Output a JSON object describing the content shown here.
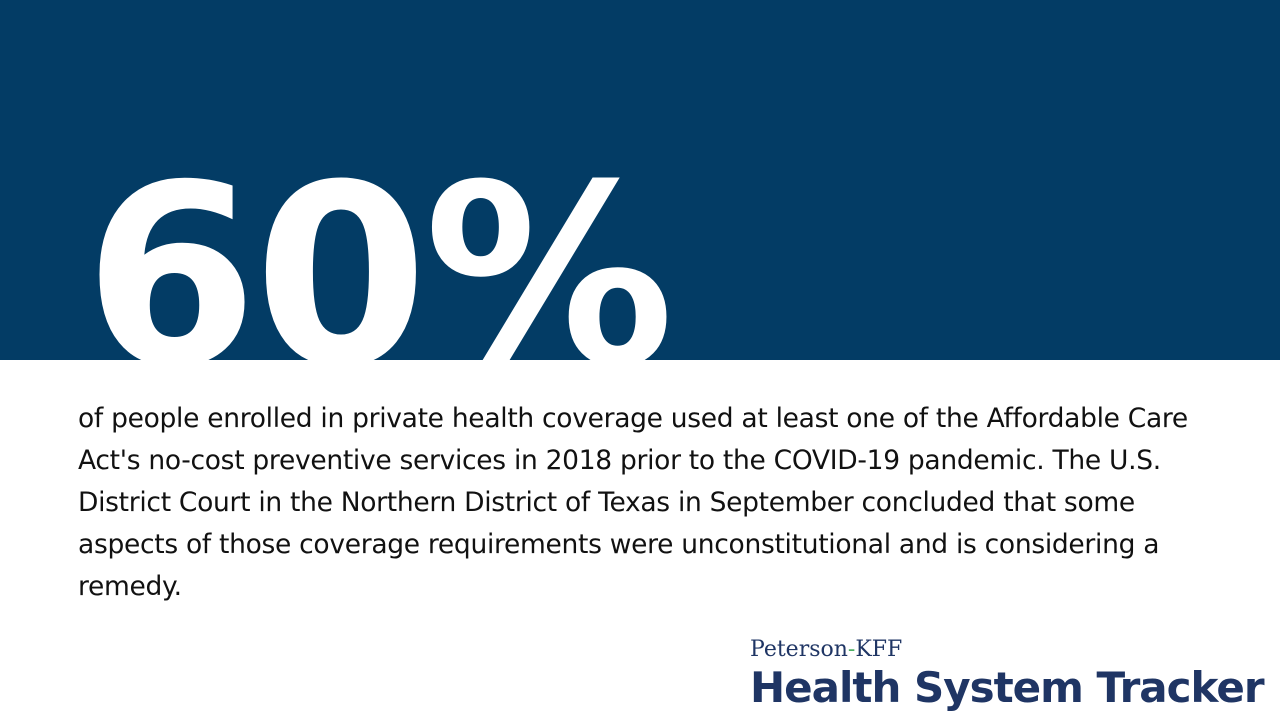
{
  "stat": {
    "value": "60%",
    "background_color": "#033c65",
    "text_color": "#ffffff"
  },
  "description": "of people enrolled in private health coverage used at least one of the Affordable Care Act's no-cost preventive services in 2018 prior to the COVID-19 pandemic. The U.S. District Court in the Northern District of Texas in September concluded that some aspects of those coverage requirements were unconstitutional and is considering a remedy.",
  "logo": {
    "top_part1": "Peterson",
    "top_dash": "-",
    "top_part2": "KFF",
    "main": "Health System Tracker",
    "brand_color": "#1f3564",
    "accent_color": "#4caf63"
  }
}
